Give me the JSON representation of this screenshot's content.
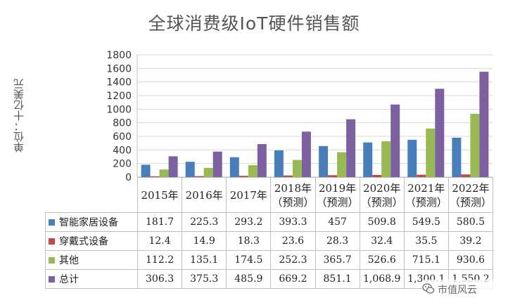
{
  "chart_data": {
    "type": "bar",
    "title": "全球消费级IoT硬件销售额",
    "ylabel": "单位：十亿美元",
    "ylim": [
      0,
      1800
    ],
    "yticks": [
      0,
      200,
      400,
      600,
      800,
      1000,
      1200,
      1400,
      1600,
      1800
    ],
    "grid": true,
    "legend": "table-left",
    "categories": [
      {
        "year": "2015年",
        "sub": ""
      },
      {
        "year": "2016年",
        "sub": ""
      },
      {
        "year": "2017年",
        "sub": ""
      },
      {
        "year": "2018年",
        "sub": "（预测）"
      },
      {
        "year": "2019年",
        "sub": "（预测）"
      },
      {
        "year": "2020年",
        "sub": "（预测）"
      },
      {
        "year": "2021年",
        "sub": "（预测）"
      },
      {
        "year": "2022年",
        "sub": "（预测）"
      }
    ],
    "series": [
      {
        "name": "智能家居设备",
        "color": "#4a7ebb",
        "values": [
          181.7,
          225.3,
          293.2,
          393.3,
          457,
          509.8,
          549.5,
          580.5
        ],
        "labels": [
          "181.7",
          "225.3",
          "293.2",
          "393.3",
          "457",
          "509.8",
          "549.5",
          "580.5"
        ]
      },
      {
        "name": "穿戴式设备",
        "color": "#be4b48",
        "values": [
          12.4,
          14.9,
          18.3,
          23.6,
          28.3,
          32.4,
          35.5,
          39.2
        ],
        "labels": [
          "12.4",
          "14.9",
          "18.3",
          "23.6",
          "28.3",
          "32.4",
          "35.5",
          "39.2"
        ]
      },
      {
        "name": "其他",
        "color": "#98b954",
        "values": [
          112.2,
          135.1,
          174.5,
          252.3,
          365.7,
          526.6,
          715.1,
          930.6
        ],
        "labels": [
          "112.2",
          "135.1",
          "174.5",
          "252.3",
          "365.7",
          "526.6",
          "715.1",
          "930.6"
        ]
      },
      {
        "name": "总计",
        "color": "#7d60a0",
        "values": [
          306.3,
          375.3,
          485.9,
          669.2,
          851.1,
          1068.9,
          1300.1,
          1550.2
        ],
        "labels": [
          "306.3",
          "375.3",
          "485.9",
          "669.2",
          "851.1",
          "1,068.9",
          "1,300.1",
          "1,550.2"
        ]
      }
    ]
  },
  "watermark": {
    "text": "市值风云",
    "icon": "wechat-logo-icon"
  }
}
